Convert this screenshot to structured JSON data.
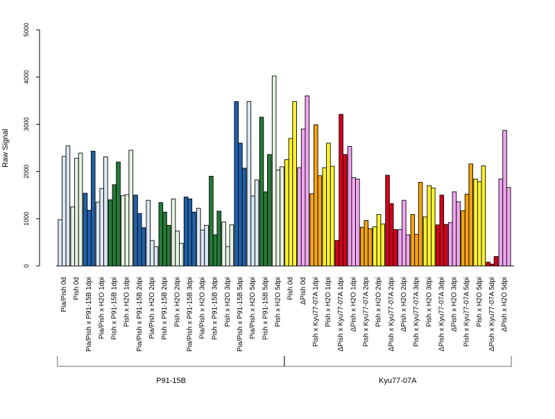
{
  "colors": {
    "light_blue": "#dbe7f5",
    "dark_blue": "#2061a9",
    "light_green": "#e6f3e4",
    "dark_green": "#257b38",
    "yellow": "#fff32b",
    "violet": "#f0a6ef",
    "orange": "#f5a30f",
    "red": "#d6001c",
    "outline": "#000000"
  },
  "chart_data": {
    "type": "bar",
    "title": "",
    "xlabel": "",
    "ylabel": "Raw Signal",
    "ylim": [
      0,
      5000
    ],
    "yticks": [
      0,
      1000,
      2000,
      3000,
      4000,
      5000
    ],
    "grid": false,
    "legend": "none",
    "categories": [
      "Pia/Pish 0d",
      "Pish 0d",
      "Pia/Pish x P91-15B 1dpi",
      "Pia/Pish x H2O 1dpi",
      "Pish x P91-15B 1dpi",
      "Pish x H2O 1dpi",
      "Pia/Pish x P91-15B 2dpi",
      "Pia/Pish x H2O 2dpi",
      "Pish x P91-15B 2dpi",
      "Pish x H2O 2dpi",
      "Pia/Pish x P91-15B 3dpi",
      "Pia/Pish x H2O 3dpi",
      "Pish x P91-15B 3dpi",
      "Pish x H2O 3dpi",
      "Pia/Pish x P91-15B 5dpi",
      "Pia/Pish x H2O 5dpi",
      "Pish x P91-15B 5dpi",
      "Pish x H2O 5dpi",
      "Pish 0d",
      "ΔPish 0d",
      "Pish x Kyu77-07A 1dpi",
      "Pish x H2O 1dpi",
      "ΔPish x Kyu77-07A 1dpi",
      "ΔPish x H2O 1dpi",
      "Pish x Kyu77-07A 2dpi",
      "Pish x H2O 2dpi",
      "ΔPish x Kyu77-07A 2dpi",
      "ΔPish x H2O 2dpi",
      "Pish x Kyu77-07A 3dpi",
      "Pish x H2O 3dpi",
      "ΔPish x Kyu77-07A 3dpi",
      "ΔPish x H2O 3dpi",
      "Pish x Kyu77-07A 5dpi",
      "Pish x H2O 5dpi",
      "ΔPish x Kyu77-07A 5dpi",
      "ΔPish x H2O 5dpi"
    ],
    "bar_colors": [
      "light_blue",
      "light_green",
      "dark_blue",
      "light_blue",
      "dark_green",
      "light_green",
      "dark_blue",
      "light_blue",
      "dark_green",
      "light_green",
      "dark_blue",
      "light_blue",
      "dark_green",
      "light_green",
      "dark_blue",
      "light_blue",
      "dark_green",
      "light_green",
      "yellow",
      "violet",
      "orange",
      "yellow",
      "red",
      "violet",
      "orange",
      "yellow",
      "red",
      "violet",
      "orange",
      "yellow",
      "red",
      "violet",
      "orange",
      "yellow",
      "red",
      "violet"
    ],
    "values": [
      [
        980,
        2320,
        2540
      ],
      [
        1250,
        2280,
        2390
      ],
      [
        1540,
        1180,
        2430
      ],
      [
        1350,
        1640,
        2310
      ],
      [
        1400,
        1720,
        2200
      ],
      [
        1490,
        1510,
        2450
      ],
      [
        1500,
        1110,
        810
      ],
      [
        1390,
        540,
        410
      ],
      [
        1340,
        1140,
        860
      ],
      [
        1420,
        740,
        480
      ],
      [
        1460,
        1420,
        1140
      ],
      [
        1220,
        760,
        860
      ],
      [
        1900,
        660,
        1160
      ],
      [
        930,
        410,
        870
      ],
      [
        3480,
        2600,
        2070
      ],
      [
        3480,
        1480,
        1820
      ],
      [
        3150,
        1570,
        2360
      ],
      [
        4020,
        2030,
        2100
      ],
      [
        2250,
        2700,
        3480
      ],
      [
        2080,
        2900,
        3600
      ],
      [
        1530,
        2990,
        1910
      ],
      [
        2080,
        2600,
        2110
      ],
      [
        540,
        3210,
        2360
      ],
      [
        2530,
        1870,
        1840
      ],
      [
        820,
        960,
        790
      ],
      [
        830,
        1090,
        890
      ],
      [
        1920,
        1320,
        770
      ],
      [
        770,
        1390,
        660
      ],
      [
        1090,
        670,
        1770
      ],
      [
        1040,
        1700,
        1650
      ],
      [
        870,
        1500,
        880
      ],
      [
        920,
        1570,
        1360
      ],
      [
        1170,
        1520,
        2160
      ],
      [
        1840,
        1780,
        2120
      ],
      [
        80,
        40,
        200
      ],
      [
        1840,
        2870,
        1660
      ]
    ],
    "groups": [
      {
        "label": "P91-15B",
        "start": 0,
        "end": 17
      },
      {
        "label": "Kyu77-07A",
        "start": 18,
        "end": 35
      }
    ]
  }
}
